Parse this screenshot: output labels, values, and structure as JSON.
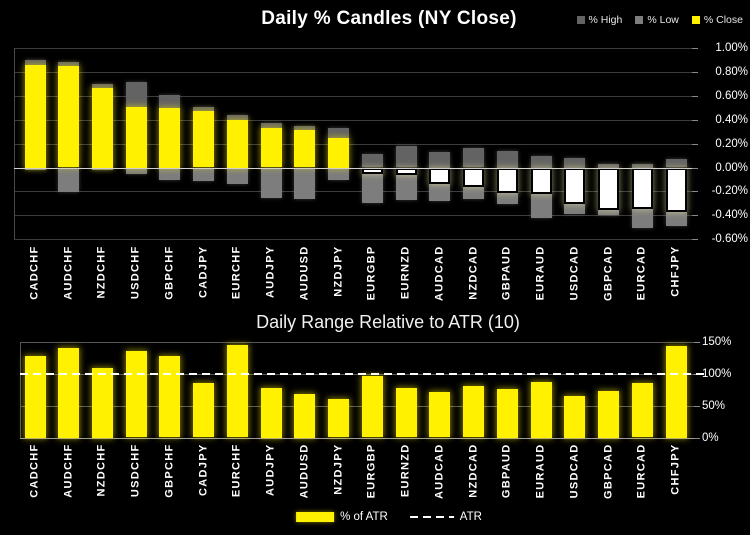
{
  "chart_data": [
    {
      "type": "bar",
      "subtype": "daily-percent-candles",
      "title": "Daily % Candles (NY Close)",
      "legend_position": "top-right",
      "legend": [
        {
          "label": "% High",
          "color": "#636363"
        },
        {
          "label": "% Low",
          "color": "#7d7d7d"
        },
        {
          "label": "% Close",
          "color": "#FFF100"
        }
      ],
      "negative_close_fill": "#FFFFFF",
      "grid": true,
      "ylim": [
        -0.6,
        1.0
      ],
      "y_ticks": [
        {
          "value": 1.0,
          "label": "1.00%"
        },
        {
          "value": 0.8,
          "label": "0.80%"
        },
        {
          "value": 0.6,
          "label": "0.60%"
        },
        {
          "value": 0.4,
          "label": "0.40%"
        },
        {
          "value": 0.2,
          "label": "0.20%"
        },
        {
          "value": 0.0,
          "label": "0.00%"
        },
        {
          "value": -0.2,
          "label": "-0.20%"
        },
        {
          "value": -0.4,
          "label": "-0.40%"
        },
        {
          "value": -0.6,
          "label": "-0.60%"
        }
      ],
      "categories": [
        "CADCHF",
        "AUDCHF",
        "NZDCHF",
        "USDCHF",
        "GBPCHF",
        "CADJPY",
        "EURCHF",
        "AUDJPY",
        "AUDUSD",
        "NZDJPY",
        "EURGBP",
        "EURNZD",
        "AUDCAD",
        "NZDCAD",
        "GBPAUD",
        "EURAUD",
        "USDCAD",
        "GBPCAD",
        "EURCAD",
        "CHFJPY"
      ],
      "series": [
        {
          "name": "% High",
          "values": [
            0.9,
            0.88,
            0.7,
            0.72,
            0.61,
            0.51,
            0.44,
            0.37,
            0.35,
            0.33,
            0.11,
            0.18,
            0.13,
            0.16,
            0.14,
            0.1,
            0.08,
            0.03,
            0.03,
            0.07
          ]
        },
        {
          "name": "% Low",
          "values": [
            -0.02,
            -0.2,
            -0.02,
            -0.05,
            -0.1,
            -0.11,
            -0.13,
            -0.25,
            -0.26,
            -0.1,
            -0.3,
            -0.27,
            -0.28,
            -0.26,
            -0.3,
            -0.42,
            -0.39,
            -0.4,
            -0.51,
            -0.49
          ]
        },
        {
          "name": "% Close",
          "values": [
            0.86,
            0.85,
            0.67,
            0.51,
            0.5,
            0.47,
            0.4,
            0.33,
            0.31,
            0.25,
            -0.05,
            -0.06,
            -0.13,
            -0.16,
            -0.21,
            -0.22,
            -0.3,
            -0.35,
            -0.34,
            -0.37
          ]
        }
      ]
    },
    {
      "type": "bar",
      "title": "Daily Range Relative to ATR (10)",
      "legend_position": "bottom",
      "legend": [
        {
          "label": "% of ATR",
          "color": "#FFF100"
        },
        {
          "label": "ATR",
          "color": "#FFFFFF",
          "style": "dashed-line"
        }
      ],
      "grid": true,
      "ylim": [
        0,
        150
      ],
      "y_ticks": [
        {
          "value": 150,
          "label": "150%"
        },
        {
          "value": 100,
          "label": "100%"
        },
        {
          "value": 50,
          "label": "50%"
        },
        {
          "value": 0,
          "label": "0%"
        }
      ],
      "reference_line": {
        "name": "ATR",
        "value": 100,
        "style": "dashed",
        "color": "#FFFFFF"
      },
      "categories": [
        "CADCHF",
        "AUDCHF",
        "NZDCHF",
        "USDCHF",
        "GBPCHF",
        "CADJPY",
        "EURCHF",
        "AUDJPY",
        "AUDUSD",
        "NZDJPY",
        "EURGBP",
        "EURNZD",
        "AUDCAD",
        "NZDCAD",
        "GBPAUD",
        "EURAUD",
        "USDCAD",
        "GBPCAD",
        "EURCAD",
        "CHFJPY"
      ],
      "values": [
        128,
        140,
        109,
        135,
        127,
        85,
        144,
        78,
        68,
        60,
        96,
        77,
        71,
        80,
        76,
        87,
        65,
        73,
        85,
        143
      ]
    }
  ]
}
